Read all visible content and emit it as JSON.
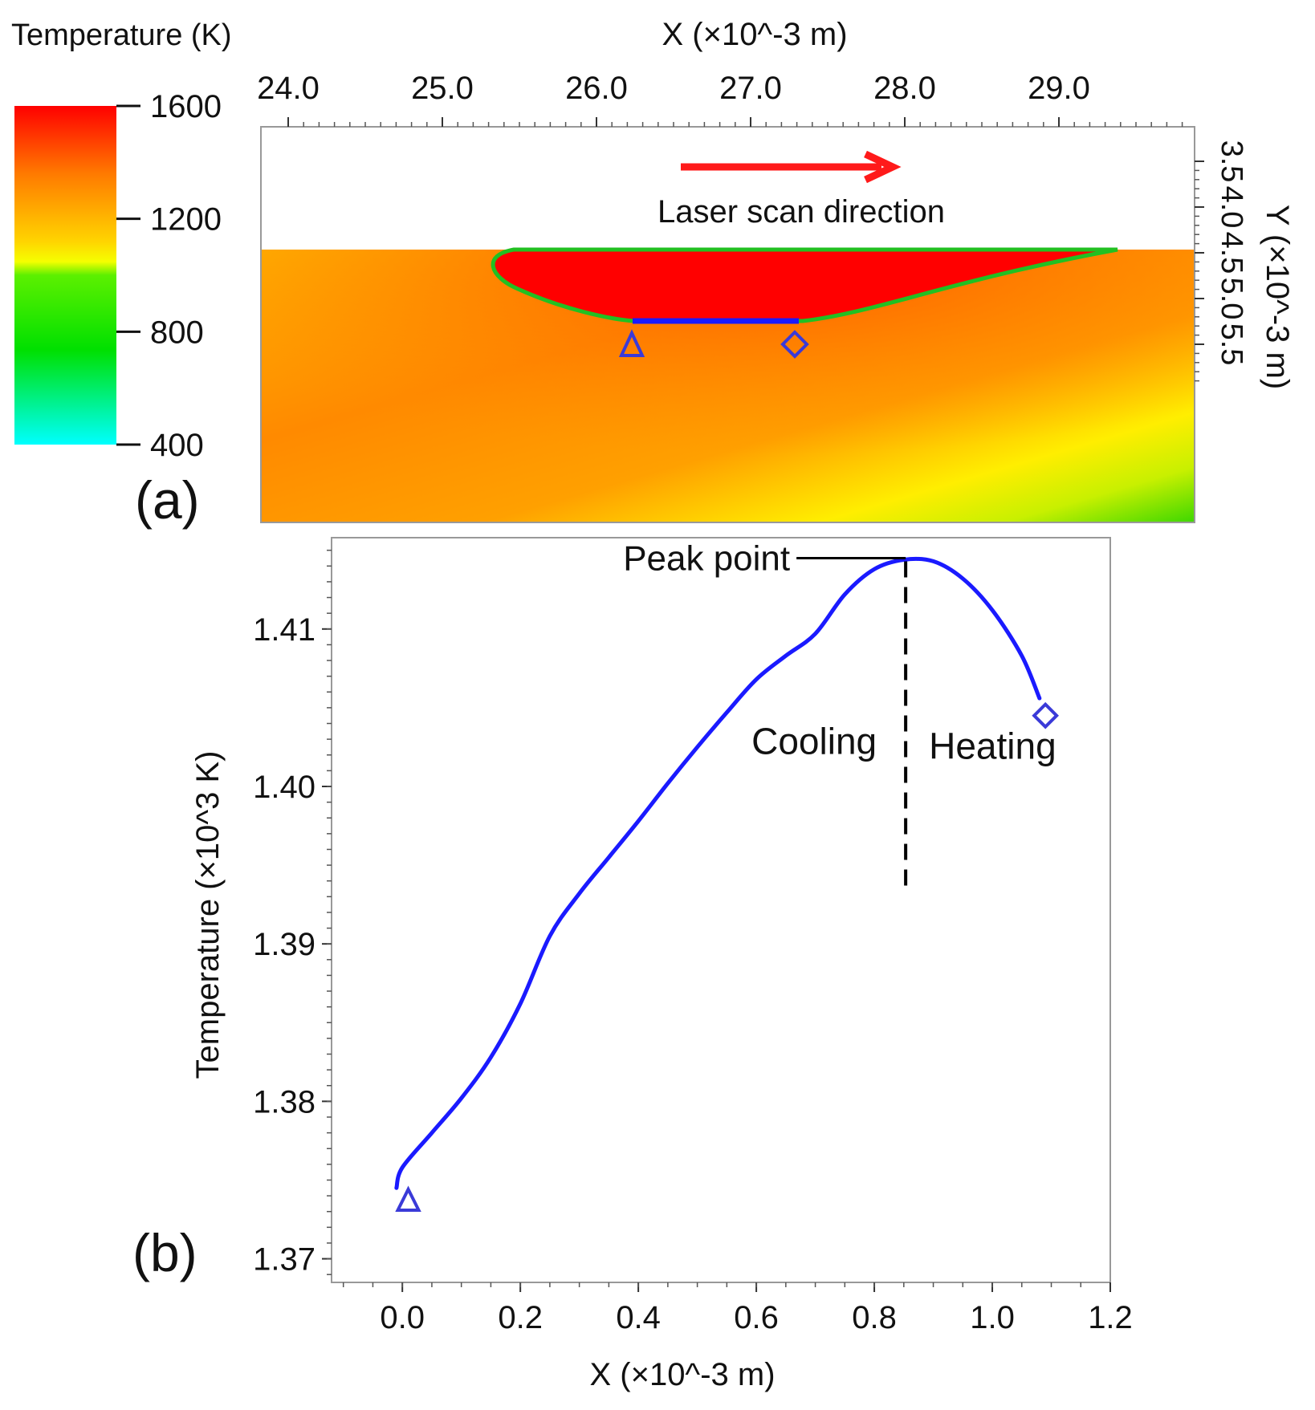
{
  "colorbar": {
    "title": "Temperature (K)",
    "ticks": [
      1600,
      1200,
      800,
      400
    ],
    "range": [
      400,
      1600
    ],
    "colors": [
      "#ff0000",
      "#ff7a00",
      "#ffd400",
      "#f5ff00",
      "#00e000",
      "#00e000",
      "#00ffff"
    ]
  },
  "panel_a": {
    "label": "(a)",
    "x_title": "X (×10^-3 m)",
    "y_title": "Y (×10^-3 m)",
    "x_ticks": [
      "24.0",
      "25.0",
      "26.0",
      "27.0",
      "28.0",
      "29.0"
    ],
    "y_ticks": [
      "3.5",
      "4.0",
      "4.5",
      "5.0",
      "5.5"
    ],
    "annotation": "Laser scan direction",
    "arrow_color": "#ff1a1a"
  },
  "chart_data": {
    "type": "line",
    "label": "(b)",
    "title": "",
    "xlabel": "X (×10^-3 m)",
    "ylabel": "Temperature (×10^3 K)",
    "xlim": [
      -0.12,
      1.2
    ],
    "ylim": [
      1.3685,
      1.4158
    ],
    "x_ticks": [
      "0.0",
      "0.2",
      "0.4",
      "0.6",
      "0.8",
      "1.0",
      "1.2"
    ],
    "y_ticks": [
      "1.37",
      "1.38",
      "1.39",
      "1.40",
      "1.41"
    ],
    "series": [
      {
        "name": "Temperature",
        "color": "#1a1aff",
        "x": [
          -0.01,
          0.0,
          0.05,
          0.1,
          0.15,
          0.2,
          0.25,
          0.3,
          0.35,
          0.4,
          0.45,
          0.5,
          0.55,
          0.6,
          0.65,
          0.7,
          0.75,
          0.8,
          0.85,
          0.9,
          0.95,
          1.0,
          1.05,
          1.08
        ],
        "values": [
          1.3745,
          1.3758,
          1.378,
          1.3802,
          1.3828,
          1.3862,
          1.3905,
          1.3932,
          1.3955,
          1.3978,
          1.4002,
          1.4025,
          1.4047,
          1.4068,
          1.4083,
          1.4097,
          1.4122,
          1.4138,
          1.4144,
          1.4143,
          1.4132,
          1.4112,
          1.4083,
          1.4056
        ]
      }
    ],
    "markers": [
      {
        "shape": "triangle",
        "x": 0.01,
        "y": 1.3737
      },
      {
        "shape": "diamond",
        "x": 1.09,
        "y": 1.4045
      }
    ],
    "annotations": {
      "peak": "Peak point",
      "left_region": "Cooling",
      "right_region": "Heating",
      "peak_x": 0.845,
      "peak_y": 1.4145,
      "divider_bottom_y": 1.3937
    }
  }
}
